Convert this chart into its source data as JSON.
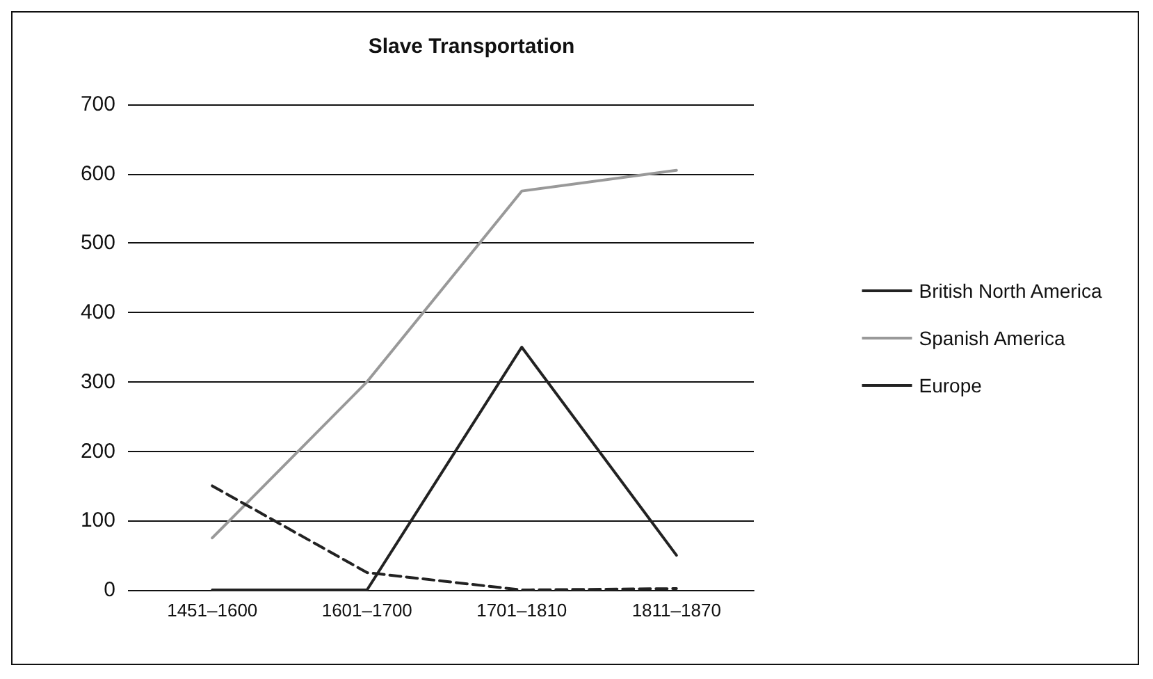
{
  "chart_data": {
    "type": "line",
    "title": "Slave Transportation",
    "categories": [
      "1451–1600",
      "1601–1700",
      "1701–1810",
      "1811–1870"
    ],
    "series": [
      {
        "name": "British North America",
        "color": "#222222",
        "values": [
          0,
          0,
          350,
          50
        ],
        "line_style": "solid"
      },
      {
        "name": "Spanish America",
        "color": "#999999",
        "values": [
          75,
          300,
          575,
          605
        ],
        "line_style": "solid"
      },
      {
        "name": "Europe",
        "color": "#222222",
        "values": [
          150,
          25,
          0,
          2
        ],
        "line_style": "dashed"
      }
    ],
    "ylim": [
      0,
      700
    ],
    "yticks": [
      0,
      100,
      200,
      300,
      400,
      500,
      600,
      700
    ],
    "grid": "y",
    "legend": "right",
    "marker": "none"
  }
}
